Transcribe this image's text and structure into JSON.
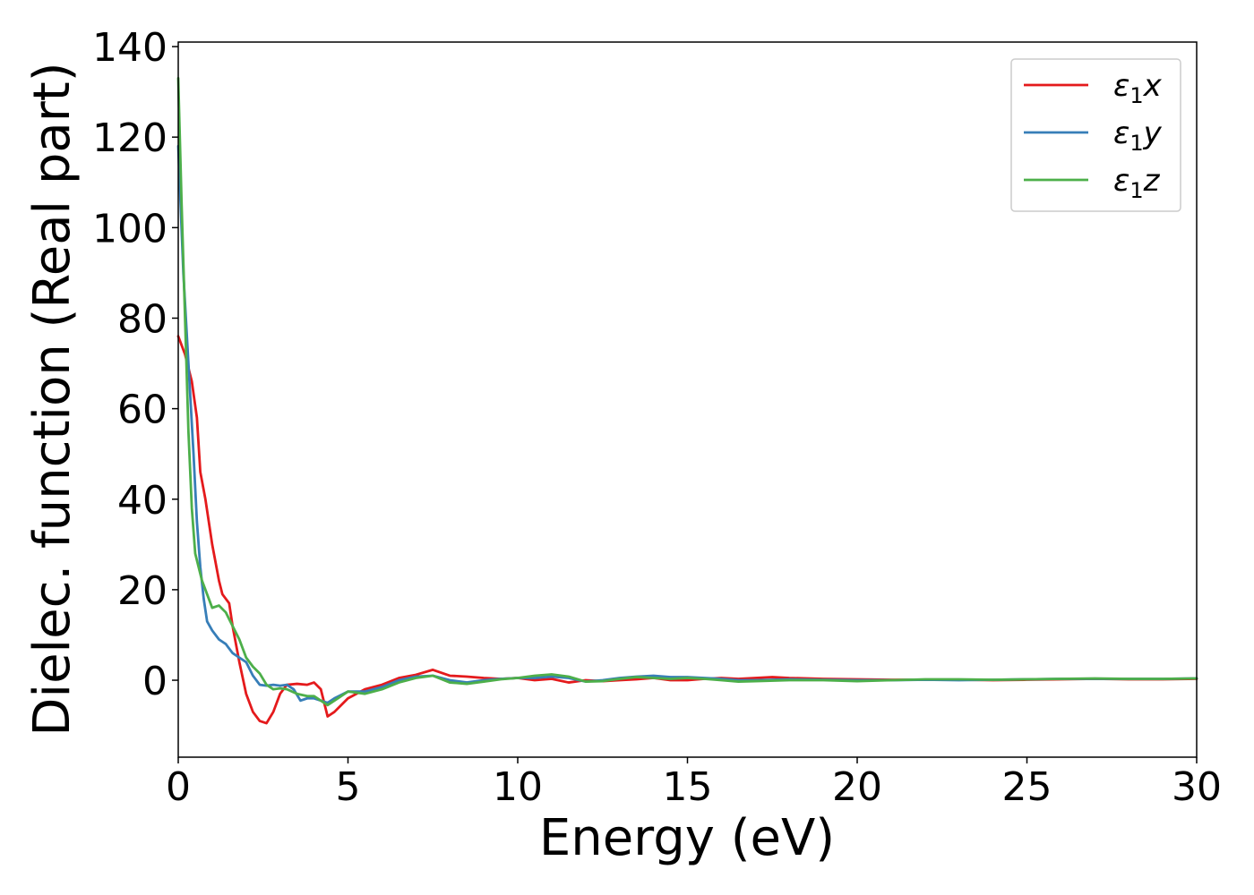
{
  "chart_data": {
    "type": "line",
    "xlabel": "Energy (eV)",
    "ylabel": "Dielec. function (Real part)",
    "xlim": [
      0,
      30
    ],
    "ylim": [
      -17,
      141
    ],
    "xticks": [
      0,
      5,
      10,
      15,
      20,
      25,
      30
    ],
    "yticks": [
      0,
      20,
      40,
      60,
      80,
      100,
      120,
      140
    ],
    "grid": false,
    "legend_position": "top-right",
    "series": [
      {
        "name": "ε₁x",
        "legend_main": "ε",
        "legend_sub": "1",
        "legend_var": "x",
        "color": "#e41a1c",
        "points": [
          [
            0.0,
            76
          ],
          [
            0.2,
            72
          ],
          [
            0.4,
            66
          ],
          [
            0.55,
            58
          ],
          [
            0.65,
            46
          ],
          [
            0.8,
            40
          ],
          [
            0.9,
            35
          ],
          [
            1.0,
            30
          ],
          [
            1.1,
            26
          ],
          [
            1.2,
            22
          ],
          [
            1.3,
            19
          ],
          [
            1.5,
            17
          ],
          [
            1.6,
            12
          ],
          [
            1.8,
            4
          ],
          [
            2.0,
            -3
          ],
          [
            2.2,
            -7
          ],
          [
            2.4,
            -9
          ],
          [
            2.6,
            -9.5
          ],
          [
            2.8,
            -7
          ],
          [
            3.0,
            -3
          ],
          [
            3.2,
            -1
          ],
          [
            3.5,
            -0.8
          ],
          [
            3.8,
            -1
          ],
          [
            4.0,
            -0.5
          ],
          [
            4.2,
            -2
          ],
          [
            4.4,
            -8
          ],
          [
            4.6,
            -7
          ],
          [
            5.0,
            -4
          ],
          [
            5.5,
            -2
          ],
          [
            6.0,
            -1
          ],
          [
            6.5,
            0.5
          ],
          [
            7.0,
            1.2
          ],
          [
            7.5,
            2.3
          ],
          [
            8.0,
            1.0
          ],
          [
            8.5,
            0.8
          ],
          [
            9.0,
            0.5
          ],
          [
            9.5,
            0.3
          ],
          [
            10.0,
            0.5
          ],
          [
            10.5,
            0
          ],
          [
            11.0,
            0.3
          ],
          [
            11.5,
            -0.5
          ],
          [
            12.0,
            0
          ],
          [
            12.5,
            -0.2
          ],
          [
            13.0,
            0
          ],
          [
            13.5,
            0.2
          ],
          [
            14.0,
            0.5
          ],
          [
            14.5,
            0
          ],
          [
            15.0,
            0
          ],
          [
            15.5,
            0.3
          ],
          [
            16.0,
            0.5
          ],
          [
            16.5,
            0.3
          ],
          [
            17.0,
            0.5
          ],
          [
            17.5,
            0.7
          ],
          [
            18.0,
            0.5
          ],
          [
            19.0,
            0.3
          ],
          [
            20.0,
            0.2
          ],
          [
            21.0,
            0.1
          ],
          [
            22.0,
            0.1
          ],
          [
            23.0,
            0.1
          ],
          [
            24.0,
            0
          ],
          [
            25.0,
            0.1
          ],
          [
            26.0,
            0.2
          ],
          [
            27.0,
            0.3
          ],
          [
            28.0,
            0.2
          ],
          [
            29.0,
            0.2
          ],
          [
            30.0,
            0.3
          ]
        ]
      },
      {
        "name": "ε₁y",
        "legend_main": "ε",
        "legend_sub": "1",
        "legend_var": "y",
        "color": "#377eb8",
        "points": [
          [
            0.0,
            118
          ],
          [
            0.15,
            90
          ],
          [
            0.3,
            70
          ],
          [
            0.45,
            50
          ],
          [
            0.55,
            35
          ],
          [
            0.65,
            25
          ],
          [
            0.75,
            18
          ],
          [
            0.85,
            13
          ],
          [
            1.0,
            11
          ],
          [
            1.2,
            9
          ],
          [
            1.4,
            8
          ],
          [
            1.6,
            6
          ],
          [
            1.8,
            5
          ],
          [
            2.0,
            4
          ],
          [
            2.2,
            1
          ],
          [
            2.4,
            -1
          ],
          [
            2.6,
            -1.2
          ],
          [
            2.8,
            -1
          ],
          [
            3.0,
            -1.2
          ],
          [
            3.2,
            -1
          ],
          [
            3.4,
            -2
          ],
          [
            3.6,
            -4.5
          ],
          [
            3.8,
            -4
          ],
          [
            4.0,
            -4
          ],
          [
            4.2,
            -4.5
          ],
          [
            4.4,
            -5
          ],
          [
            4.6,
            -4
          ],
          [
            5.0,
            -2.5
          ],
          [
            5.5,
            -2.5
          ],
          [
            6.0,
            -1.5
          ],
          [
            6.5,
            0
          ],
          [
            7.0,
            0.8
          ],
          [
            7.5,
            1
          ],
          [
            8.0,
            0
          ],
          [
            8.5,
            -0.5
          ],
          [
            9.0,
            0
          ],
          [
            9.5,
            0.3
          ],
          [
            10.0,
            0.5
          ],
          [
            10.5,
            0.5
          ],
          [
            11.0,
            0.8
          ],
          [
            11.5,
            0.5
          ],
          [
            12.0,
            -0.3
          ],
          [
            12.5,
            0
          ],
          [
            13.0,
            0.5
          ],
          [
            13.5,
            0.8
          ],
          [
            14.0,
            1
          ],
          [
            14.5,
            0.7
          ],
          [
            15.0,
            0.7
          ],
          [
            15.5,
            0.5
          ],
          [
            16.0,
            0.3
          ],
          [
            16.5,
            0
          ],
          [
            17.0,
            0
          ],
          [
            18.0,
            0.2
          ],
          [
            19.0,
            0.1
          ],
          [
            20.0,
            0
          ],
          [
            21.0,
            0
          ],
          [
            22.0,
            0.1
          ],
          [
            23.0,
            0
          ],
          [
            24.0,
            0.1
          ],
          [
            25.0,
            0.2
          ],
          [
            26.0,
            0.3
          ],
          [
            27.0,
            0.3
          ],
          [
            28.0,
            0.3
          ],
          [
            29.0,
            0.3
          ],
          [
            30.0,
            0.4
          ]
        ]
      },
      {
        "name": "ε₁z",
        "legend_main": "ε",
        "legend_sub": "1",
        "legend_var": "z",
        "color": "#4daf4a",
        "points": [
          [
            0.0,
            133
          ],
          [
            0.1,
            105
          ],
          [
            0.2,
            80
          ],
          [
            0.3,
            55
          ],
          [
            0.4,
            38
          ],
          [
            0.5,
            28
          ],
          [
            0.7,
            22
          ],
          [
            0.9,
            18
          ],
          [
            1.0,
            16
          ],
          [
            1.2,
            16.5
          ],
          [
            1.4,
            15
          ],
          [
            1.6,
            12
          ],
          [
            1.8,
            9
          ],
          [
            2.0,
            5
          ],
          [
            2.2,
            3
          ],
          [
            2.4,
            1.5
          ],
          [
            2.6,
            -1
          ],
          [
            2.8,
            -2
          ],
          [
            3.0,
            -1.8
          ],
          [
            3.2,
            -2
          ],
          [
            3.5,
            -3
          ],
          [
            3.8,
            -3.5
          ],
          [
            4.0,
            -3.5
          ],
          [
            4.2,
            -4.5
          ],
          [
            4.4,
            -5.5
          ],
          [
            4.6,
            -4.5
          ],
          [
            5.0,
            -2.5
          ],
          [
            5.5,
            -3
          ],
          [
            6.0,
            -2
          ],
          [
            6.5,
            -0.5
          ],
          [
            7.0,
            0.5
          ],
          [
            7.5,
            1
          ],
          [
            8.0,
            -0.5
          ],
          [
            8.5,
            -0.8
          ],
          [
            9.0,
            -0.3
          ],
          [
            9.5,
            0.2
          ],
          [
            10.0,
            0.5
          ],
          [
            10.5,
            1
          ],
          [
            11.0,
            1.3
          ],
          [
            11.5,
            0.8
          ],
          [
            12.0,
            -0.3
          ],
          [
            12.5,
            -0.2
          ],
          [
            13.0,
            0.3
          ],
          [
            13.5,
            0.7
          ],
          [
            14.0,
            0.5
          ],
          [
            14.5,
            0.3
          ],
          [
            15.0,
            0.5
          ],
          [
            15.5,
            0.3
          ],
          [
            16.0,
            0
          ],
          [
            16.5,
            -0.3
          ],
          [
            17.0,
            -0.2
          ],
          [
            18.0,
            0
          ],
          [
            19.0,
            0
          ],
          [
            20.0,
            -0.2
          ],
          [
            21.0,
            0
          ],
          [
            22.0,
            0.2
          ],
          [
            23.0,
            0.2
          ],
          [
            24.0,
            0.1
          ],
          [
            25.0,
            0.2
          ],
          [
            26.0,
            0.3
          ],
          [
            27.0,
            0.4
          ],
          [
            28.0,
            0.3
          ],
          [
            29.0,
            0.3
          ],
          [
            30.0,
            0.4
          ]
        ]
      }
    ]
  }
}
